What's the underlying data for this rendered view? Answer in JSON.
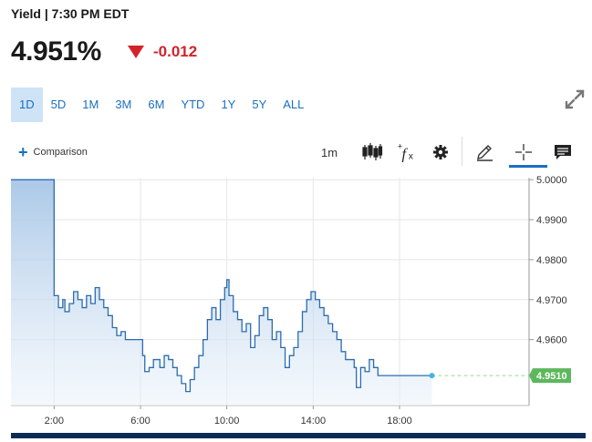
{
  "header": {
    "label": "Yield | 7:30 PM EDT"
  },
  "quote": {
    "price": "4.951%",
    "change": "-0.012",
    "direction": "down",
    "down_color": "#d2232a"
  },
  "ranges": [
    "1D",
    "5D",
    "1M",
    "3M",
    "6M",
    "YTD",
    "1Y",
    "5Y",
    "ALL"
  ],
  "active_range": "1D",
  "toolbar": {
    "comparison_label": "Comparison",
    "interval_label": "1m",
    "icons": [
      "candlestick-icon",
      "indicators-fx-icon",
      "gear-icon",
      "pencil-draw-icon",
      "crosshair-icon",
      "comment-icon"
    ]
  },
  "chart_data": {
    "type": "area",
    "x_ticks": [
      "2:00",
      "6:00",
      "10:00",
      "14:00",
      "18:00"
    ],
    "y_ticks": [
      "5.0000",
      "4.9900",
      "4.9800",
      "4.9700",
      "4.9600"
    ],
    "ylim": [
      4.9435,
      5.0005
    ],
    "x_range_hours": [
      0,
      24
    ],
    "last_value_label": "4.9510",
    "last_value": 4.951,
    "line_color": "#2b6cb0",
    "last_label_color": "#5cb85c",
    "points": [
      [
        0,
        5.0
      ],
      [
        2.0,
        5.0
      ],
      [
        2.0,
        4.971
      ],
      [
        2.2,
        4.968
      ],
      [
        2.4,
        4.97
      ],
      [
        2.5,
        4.967
      ],
      [
        2.7,
        4.969
      ],
      [
        2.9,
        4.972
      ],
      [
        3.1,
        4.97
      ],
      [
        3.3,
        4.968
      ],
      [
        3.5,
        4.971
      ],
      [
        3.7,
        4.969
      ],
      [
        3.9,
        4.973
      ],
      [
        4.1,
        4.97
      ],
      [
        4.3,
        4.968
      ],
      [
        4.5,
        4.966
      ],
      [
        4.7,
        4.963
      ],
      [
        4.9,
        4.961
      ],
      [
        5.1,
        4.962
      ],
      [
        5.3,
        4.96
      ],
      [
        5.6,
        4.96
      ],
      [
        5.9,
        4.96
      ],
      [
        6.1,
        4.956
      ],
      [
        6.2,
        4.952
      ],
      [
        6.4,
        4.953
      ],
      [
        6.6,
        4.955
      ],
      [
        6.9,
        4.953
      ],
      [
        7.1,
        4.956
      ],
      [
        7.3,
        4.955
      ],
      [
        7.5,
        4.953
      ],
      [
        7.7,
        4.951
      ],
      [
        7.9,
        4.949
      ],
      [
        8.1,
        4.947
      ],
      [
        8.3,
        4.95
      ],
      [
        8.5,
        4.953
      ],
      [
        8.7,
        4.956
      ],
      [
        8.9,
        4.96
      ],
      [
        9.1,
        4.965
      ],
      [
        9.3,
        4.968
      ],
      [
        9.5,
        4.965
      ],
      [
        9.7,
        4.97
      ],
      [
        9.9,
        4.973
      ],
      [
        10.0,
        4.975
      ],
      [
        10.1,
        4.971
      ],
      [
        10.3,
        4.967
      ],
      [
        10.5,
        4.965
      ],
      [
        10.7,
        4.962
      ],
      [
        10.9,
        4.964
      ],
      [
        11.1,
        4.958
      ],
      [
        11.3,
        4.961
      ],
      [
        11.5,
        4.966
      ],
      [
        11.7,
        4.968
      ],
      [
        11.9,
        4.965
      ],
      [
        12.1,
        4.96
      ],
      [
        12.3,
        4.962
      ],
      [
        12.5,
        4.958
      ],
      [
        12.7,
        4.953
      ],
      [
        12.9,
        4.956
      ],
      [
        13.1,
        4.958
      ],
      [
        13.3,
        4.962
      ],
      [
        13.5,
        4.967
      ],
      [
        13.7,
        4.97
      ],
      [
        13.9,
        4.972
      ],
      [
        14.1,
        4.97
      ],
      [
        14.3,
        4.968
      ],
      [
        14.5,
        4.966
      ],
      [
        14.7,
        4.964
      ],
      [
        14.9,
        4.962
      ],
      [
        15.1,
        4.96
      ],
      [
        15.3,
        4.957
      ],
      [
        15.5,
        4.955
      ],
      [
        15.7,
        4.955
      ],
      [
        15.9,
        4.953
      ],
      [
        16.0,
        4.948
      ],
      [
        16.2,
        4.953
      ],
      [
        16.4,
        4.952
      ],
      [
        16.6,
        4.955
      ],
      [
        16.8,
        4.953
      ],
      [
        17.0,
        4.951
      ],
      [
        18.0,
        4.951
      ],
      [
        19.0,
        4.951
      ],
      [
        19.5,
        4.951
      ]
    ]
  }
}
